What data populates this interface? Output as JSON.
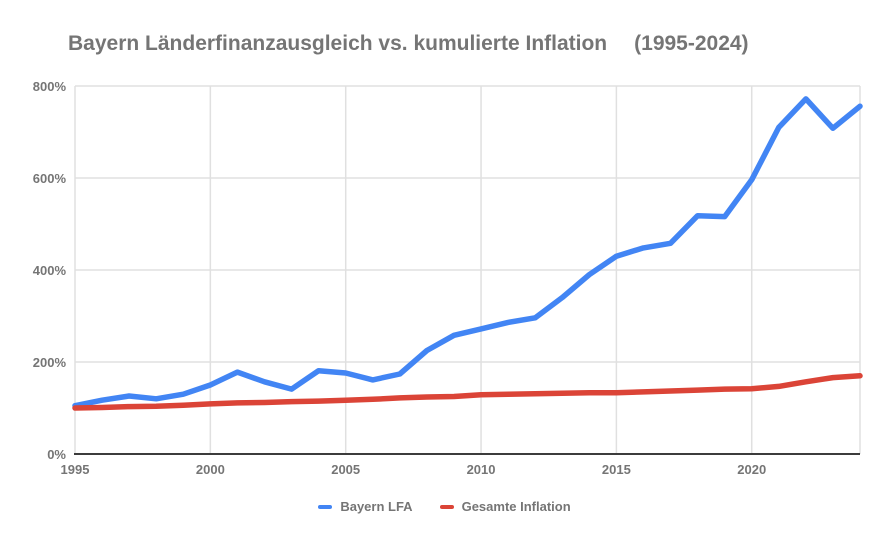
{
  "chart_data": {
    "type": "line",
    "title_main": "Bayern Länderfinanzausgleich vs. kumulierte Inflation",
    "title_period": "(1995-2024)",
    "x": [
      1995,
      1996,
      1997,
      1998,
      1999,
      2000,
      2001,
      2002,
      2003,
      2004,
      2005,
      2006,
      2007,
      2008,
      2009,
      2010,
      2011,
      2012,
      2013,
      2014,
      2015,
      2016,
      2017,
      2018,
      2019,
      2020,
      2021,
      2022,
      2023,
      2024
    ],
    "series": [
      {
        "id": "bayern-lfa",
        "name": "Bayern LFA",
        "color": "#4285F4",
        "values": [
          105,
          117,
          126,
          120,
          130,
          150,
          178,
          157,
          141,
          181,
          176,
          161,
          174,
          225,
          258,
          272,
          286,
          296,
          340,
          390,
          430,
          448,
          458,
          518,
          516,
          596,
          710,
          772,
          708,
          756
        ]
      },
      {
        "id": "gesamte-inflation",
        "name": "Gesamte Inflation",
        "color": "#DB4437",
        "values": [
          100,
          101,
          103,
          104,
          106,
          109,
          111,
          112,
          114,
          115,
          117,
          119,
          122,
          124,
          125,
          129,
          130,
          131,
          132,
          133,
          133,
          135,
          137,
          139,
          141,
          142,
          147,
          157,
          166,
          170
        ]
      }
    ],
    "xlim": [
      1995,
      2024
    ],
    "ylim": [
      0,
      800
    ],
    "xticks": [
      1995,
      2000,
      2005,
      2010,
      2015,
      2020
    ],
    "yticks": [
      0,
      200,
      400,
      600,
      800
    ],
    "y_tick_suffix": "%",
    "grid": true,
    "legend_position": "bottom",
    "background_color": "#ffffff",
    "gridline_color": "#e0e0e0",
    "baseline_color": "#3c3c3c",
    "text_color": "#757575"
  }
}
